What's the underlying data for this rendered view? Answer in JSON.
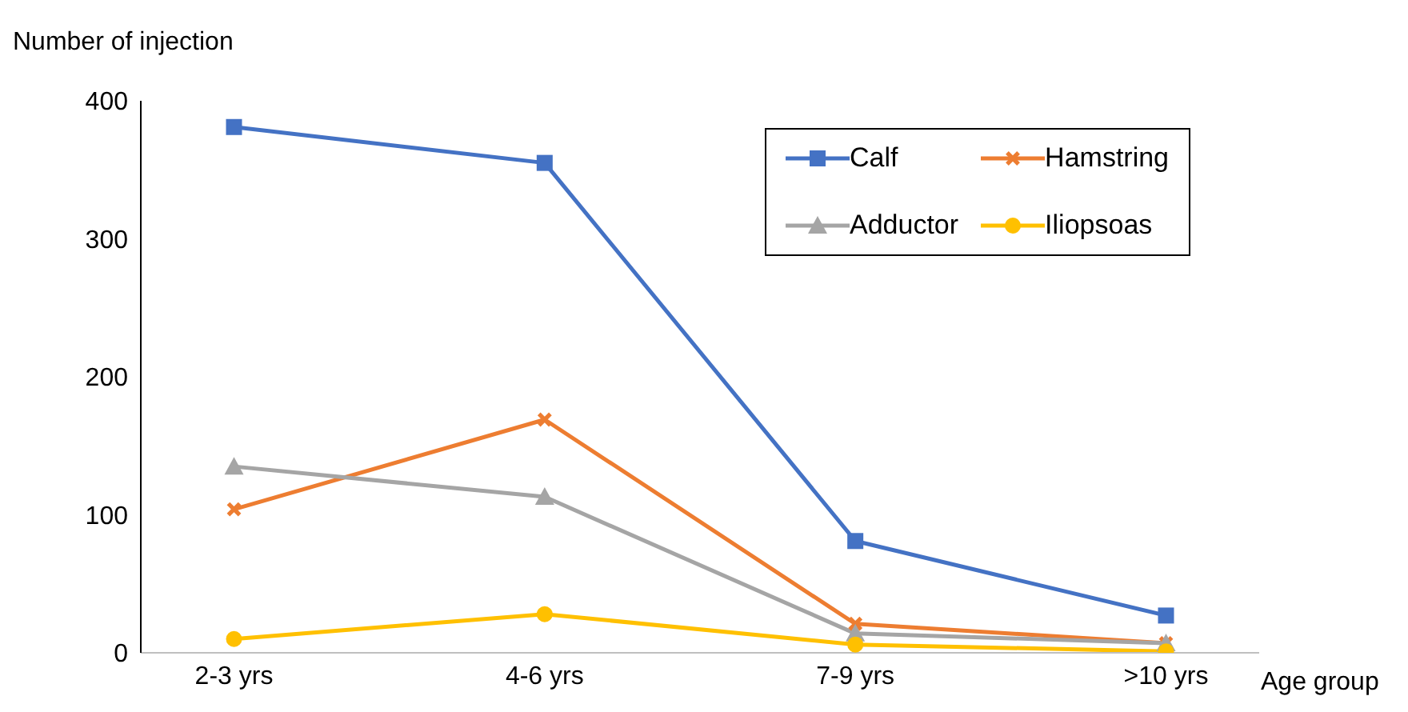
{
  "chart_data": {
    "type": "line",
    "xlabel": "Age group",
    "ylabel": "Number of injection",
    "categories": [
      "2-3 yrs",
      "4-6 yrs",
      "7-9 yrs",
      ">10 yrs"
    ],
    "series": [
      {
        "name": "Calf",
        "color": "#4472c4",
        "marker": "square",
        "values": [
          381,
          355,
          81,
          27
        ]
      },
      {
        "name": "Hamstring",
        "color": "#ed7d31",
        "marker": "cross",
        "values": [
          104,
          169,
          21,
          7
        ]
      },
      {
        "name": "Adductor",
        "color": "#a5a5a5",
        "marker": "triangle",
        "values": [
          135,
          113,
          14,
          7
        ]
      },
      {
        "name": "Iliopsoas",
        "color": "#ffc000",
        "marker": "circle",
        "values": [
          10,
          28,
          6,
          1
        ]
      }
    ],
    "ylim": [
      0,
      400
    ],
    "yticks": [
      0,
      100,
      200,
      300,
      400
    ],
    "grid": false,
    "legend": "top right"
  }
}
